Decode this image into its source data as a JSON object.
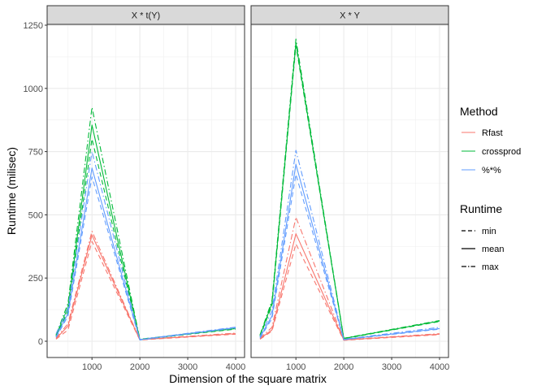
{
  "chart_data": {
    "type": "line",
    "ylabel": "Runtime (milisec)",
    "xlabel": "Dimension of the square matrix",
    "x": [
      250,
      500,
      1000,
      2000,
      4000
    ],
    "xlim": [
      0,
      4000
    ],
    "ylim": [
      -30,
      1250
    ],
    "x_ticks": [
      1000,
      2000,
      3000,
      4000
    ],
    "y_ticks": [
      0,
      250,
      500,
      750,
      1000,
      1250
    ],
    "x_tick_labels": [
      "1000",
      "2000",
      "3000",
      "4000"
    ],
    "y_tick_labels": [
      "0",
      "250",
      "500",
      "750",
      "1000",
      "1250"
    ],
    "grid": true,
    "colors": {
      "Rfast": "#F8766D",
      "crossprod": "#00BA38",
      "%*%": "#619CFF"
    },
    "legend": {
      "placement": "right",
      "method_title": "Method",
      "methods": [
        "Rfast",
        "crossprod",
        "%*%"
      ],
      "runtime_title": "Runtime",
      "stats": [
        "min",
        "mean",
        "max"
      ]
    },
    "panels": [
      {
        "title": "X * t(Y)",
        "series": [
          {
            "method": "Rfast",
            "stat": "min",
            "values": [
              8,
              45,
              395,
              5,
              28
            ]
          },
          {
            "method": "Rfast",
            "stat": "mean",
            "values": [
              10,
              60,
              420,
              6,
              30
            ]
          },
          {
            "method": "Rfast",
            "stat": "max",
            "values": [
              12,
              70,
              435,
              7,
              32
            ]
          },
          {
            "method": "crossprod",
            "stat": "min",
            "values": [
              20,
              120,
              800,
              6,
              48
            ]
          },
          {
            "method": "crossprod",
            "stat": "mean",
            "values": [
              22,
              135,
              855,
              7,
              50
            ]
          },
          {
            "method": "crossprod",
            "stat": "max",
            "values": [
              25,
              150,
              925,
              8,
              52
            ]
          },
          {
            "method": "%*%",
            "stat": "min",
            "values": [
              15,
              100,
              650,
              5,
              52
            ]
          },
          {
            "method": "%*%",
            "stat": "mean",
            "values": [
              18,
              110,
              685,
              6,
              54
            ]
          },
          {
            "method": "%*%",
            "stat": "max",
            "values": [
              30,
              130,
              750,
              7,
              56
            ]
          }
        ]
      },
      {
        "title": "X * Y",
        "series": [
          {
            "method": "Rfast",
            "stat": "min",
            "values": [
              8,
              40,
              385,
              4,
              26
            ]
          },
          {
            "method": "Rfast",
            "stat": "mean",
            "values": [
              10,
              45,
              425,
              5,
              28
            ]
          },
          {
            "method": "Rfast",
            "stat": "max",
            "values": [
              12,
              55,
              490,
              6,
              30
            ]
          },
          {
            "method": "crossprod",
            "stat": "min",
            "values": [
              20,
              140,
              1170,
              10,
              78
            ]
          },
          {
            "method": "crossprod",
            "stat": "mean",
            "values": [
              22,
              150,
              1180,
              11,
              80
            ]
          },
          {
            "method": "crossprod",
            "stat": "max",
            "values": [
              25,
              160,
              1195,
              12,
              82
            ]
          },
          {
            "method": "%*%",
            "stat": "min",
            "values": [
              12,
              90,
              660,
              6,
              48
            ]
          },
          {
            "method": "%*%",
            "stat": "mean",
            "values": [
              15,
              100,
              700,
              7,
              50
            ]
          },
          {
            "method": "%*%",
            "stat": "max",
            "values": [
              18,
              120,
              755,
              8,
              55
            ]
          }
        ]
      }
    ]
  }
}
